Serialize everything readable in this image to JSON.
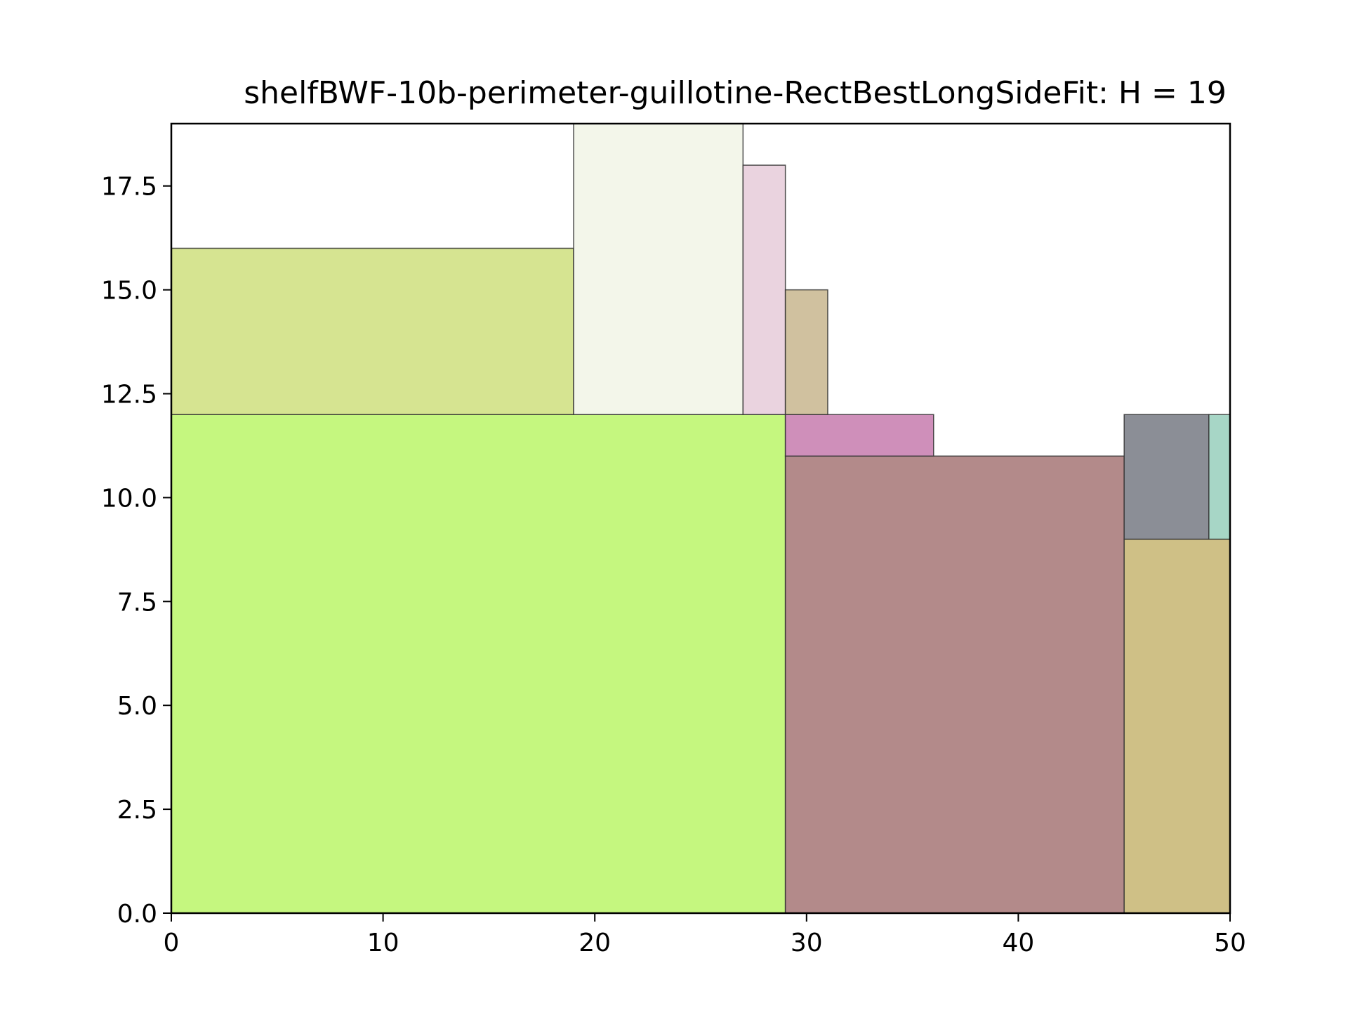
{
  "chart_data": {
    "type": "rectangles",
    "title": "shelfBWF-10b-perimeter-guillotine-RectBestLongSideFit: H = 19",
    "xlabel": "",
    "ylabel": "",
    "xlim": [
      0,
      50
    ],
    "ylim": [
      0,
      19
    ],
    "xticks": [
      "0",
      "10",
      "20",
      "30",
      "40",
      "50"
    ],
    "yticks": [
      "0.0",
      "2.5",
      "5.0",
      "7.5",
      "10.0",
      "12.5",
      "15.0",
      "17.5"
    ],
    "grid": false,
    "rectangles": [
      {
        "x": 0,
        "y": 0,
        "w": 29,
        "h": 12,
        "color": "#c5f77f"
      },
      {
        "x": 29,
        "y": 0,
        "w": 16,
        "h": 11,
        "color": "#b38a8a"
      },
      {
        "x": 45,
        "y": 0,
        "w": 5,
        "h": 9,
        "color": "#cfc086"
      },
      {
        "x": 45,
        "y": 9,
        "w": 4,
        "h": 3,
        "color": "#8b8e96"
      },
      {
        "x": 49,
        "y": 9,
        "w": 1,
        "h": 3,
        "color": "#a7d6c6"
      },
      {
        "x": 29,
        "y": 11,
        "w": 7,
        "h": 1,
        "color": "#cf8fba"
      },
      {
        "x": 0,
        "y": 12,
        "w": 19,
        "h": 4,
        "color": "#d6e491"
      },
      {
        "x": 19,
        "y": 12,
        "w": 8,
        "h": 7,
        "color": "#f3f6ea"
      },
      {
        "x": 27,
        "y": 12,
        "w": 2,
        "h": 6,
        "color": "#ead3df"
      },
      {
        "x": 29,
        "y": 12,
        "w": 2,
        "h": 3,
        "color": "#d0c19f"
      }
    ]
  }
}
